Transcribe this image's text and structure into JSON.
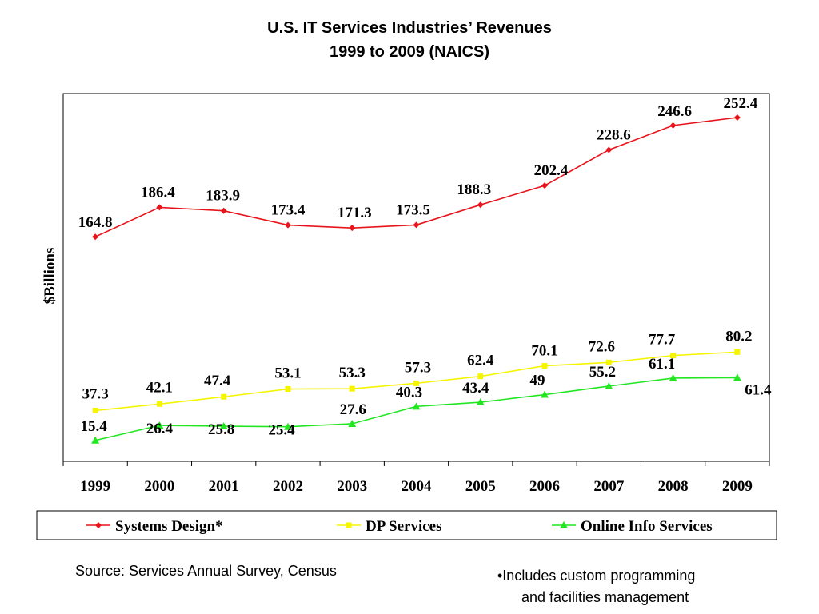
{
  "chart_data": {
    "type": "line",
    "title": "U.S. IT Services Industries’ Revenues",
    "subtitle": "1999 to 2009 (NAICS)",
    "ylabel": "$Billions",
    "xlabel": "",
    "ylim": [
      0,
      270
    ],
    "grid": false,
    "legend_position": "bottom",
    "categories": [
      "1999",
      "2000",
      "2001",
      "2002",
      "2003",
      "2004",
      "2005",
      "2006",
      "2007",
      "2008",
      "2009"
    ],
    "series": [
      {
        "name": "Systems Design*",
        "color": "#e8141c",
        "marker": "diamond",
        "labels": [
          "164.8",
          "186.4",
          "183.9",
          "173.4",
          "171.3",
          "173.5",
          "188.3",
          "202.4",
          "228.6",
          "246.6",
          "252.4"
        ],
        "values": [
          164.8,
          186.4,
          183.9,
          173.4,
          171.3,
          173.5,
          188.3,
          202.4,
          228.6,
          246.6,
          252.4
        ]
      },
      {
        "name": "DP Services",
        "color": "#f5f500",
        "marker": "square",
        "labels": [
          "37.3",
          "42.1",
          "47.4",
          "53.1",
          "53.3",
          "57.3",
          "62.4",
          "70.1",
          "72.6",
          "77.7",
          "80.2"
        ],
        "values": [
          37.3,
          42.1,
          47.4,
          53.1,
          53.3,
          57.3,
          62.4,
          70.1,
          72.6,
          77.7,
          80.2
        ]
      },
      {
        "name": "Online Info Services",
        "color": "#22e622",
        "marker": "triangle",
        "labels": [
          "15.4",
          "26.4",
          "25.8",
          "25.4",
          "27.6",
          "40.3",
          "43.4",
          "49",
          "55.2",
          "61.1",
          "61.4"
        ],
        "values": [
          15.4,
          26.4,
          25.8,
          25.4,
          27.6,
          40.3,
          43.4,
          49,
          55.2,
          61.1,
          61.4
        ]
      }
    ]
  },
  "source_note": "Source: Services Annual Survey, Census",
  "footnote_line1": "•Includes custom programming",
  "footnote_line2": "and facilities management"
}
